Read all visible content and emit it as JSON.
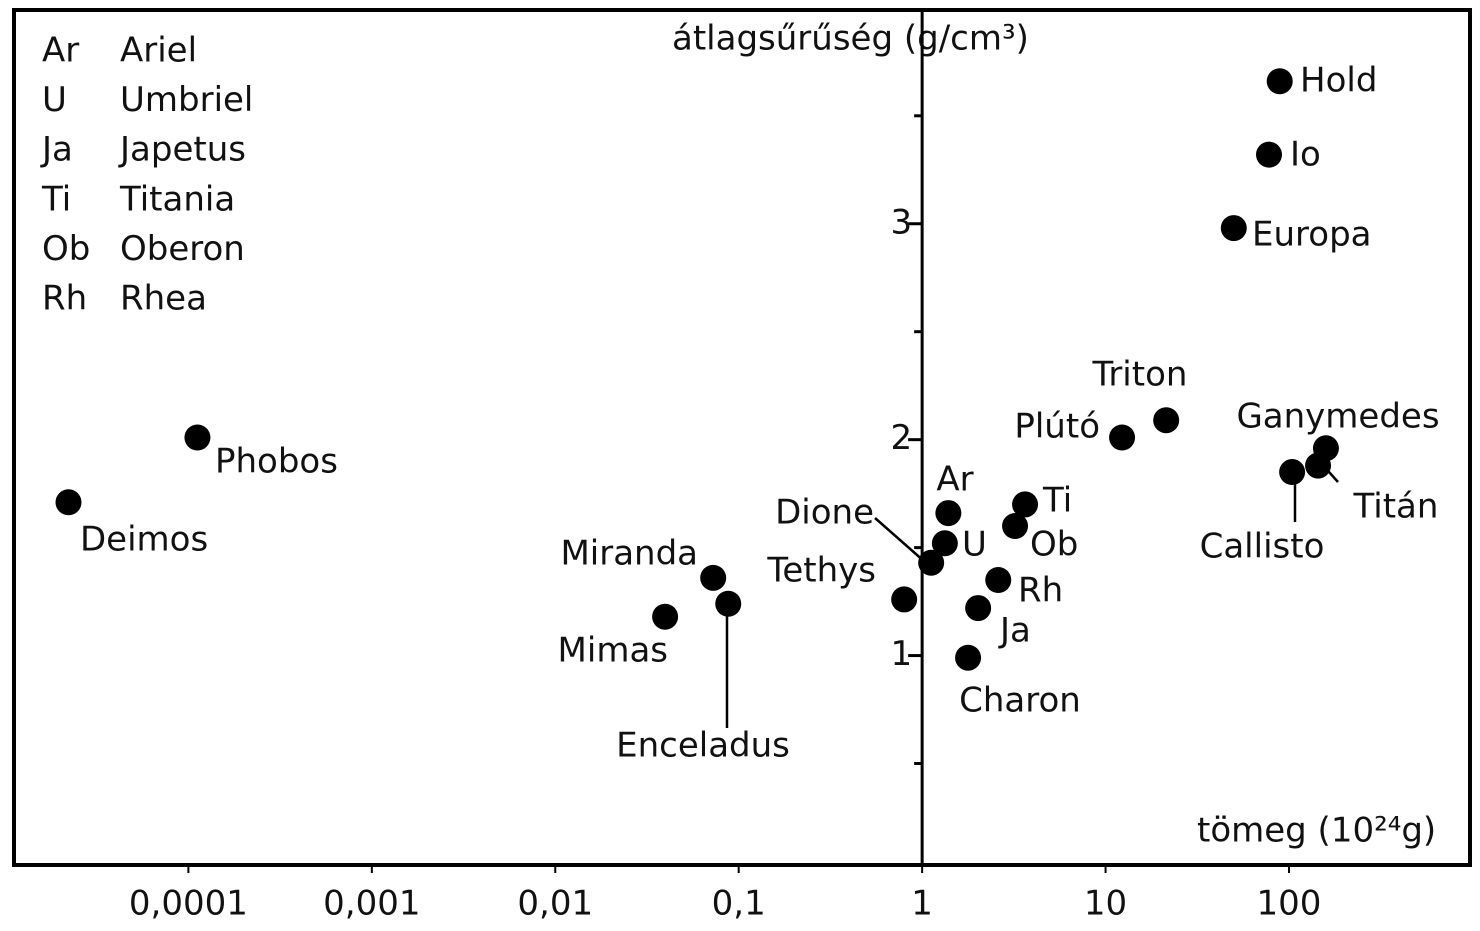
{
  "chart_data": {
    "type": "scatter",
    "x_label": "tömeg (10²⁴g)",
    "y_label": "átlagsűrűség (g/cm³)",
    "x_log": true,
    "xlim": [
      1.12e-05,
      970
    ],
    "ylim": [
      0.03,
      3.99
    ],
    "xticks": [
      {
        "value": 0.0001,
        "label": "0,0001"
      },
      {
        "value": 0.001,
        "label": "0,001"
      },
      {
        "value": 0.01,
        "label": "0,01"
      },
      {
        "value": 0.1,
        "label": "0,1"
      },
      1,
      10,
      100
    ],
    "yticks": [
      1,
      2,
      3
    ],
    "yminor_ticks": [
      0.5,
      1.5,
      2.5,
      3.5
    ],
    "color": "#000000",
    "labels": [
      "Hold",
      "Io",
      "Europa",
      "Triton",
      "Plútó",
      "Ganymedes",
      "Titán",
      "Callisto",
      "Phobos",
      "Deimos",
      "Miranda",
      "Enceladus",
      "Mimas",
      "Tethys",
      "Dione",
      "Ar",
      "U",
      "Ti",
      "Ob",
      "Rh",
      "Ja",
      "Charon"
    ],
    "x": [
      89,
      77.8,
      50,
      21.4,
      12.3,
      159,
      144,
      104,
      0.000112,
      2.22e-05,
      0.0726,
      0.0877,
      0.0397,
      0.798,
      1.12,
      1.39,
      1.33,
      3.64,
      3.21,
      2.6,
      2.02,
      1.78
    ],
    "values": [
      3.66,
      3.32,
      2.98,
      2.09,
      2.01,
      1.96,
      1.88,
      1.85,
      2.01,
      1.71,
      1.36,
      1.24,
      1.18,
      1.26,
      1.43,
      1.66,
      1.52,
      1.7,
      1.6,
      1.35,
      1.22,
      0.99
    ],
    "legend_key": [
      {
        "abbr": "Ar",
        "name": "Ariel"
      },
      {
        "abbr": "U",
        "name": "Umbriel"
      },
      {
        "abbr": "Ja",
        "name": "Japetus"
      },
      {
        "abbr": "Ti",
        "name": "Titania"
      },
      {
        "abbr": "Ob",
        "name": "Oberon"
      },
      {
        "abbr": "Rh",
        "name": "Rhea"
      }
    ]
  }
}
